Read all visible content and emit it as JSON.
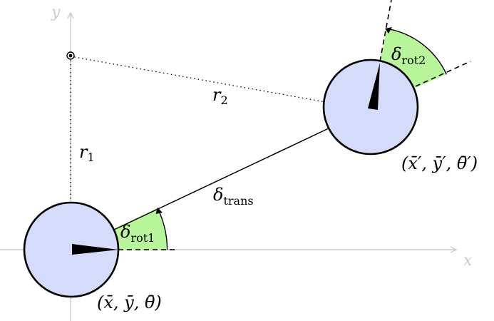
{
  "colors": {
    "axis": "#c3ced6",
    "robot_fill": "#d5dbfa",
    "robot_stroke": "#000000",
    "angle_fill": "#b9f59a",
    "line": "#000000",
    "background": "#ffffff"
  },
  "axes": {
    "x_label": "x",
    "y_label": "y"
  },
  "labels": {
    "r1": {
      "sym": "r",
      "sub": "1"
    },
    "r2": {
      "sym": "r",
      "sub": "2"
    },
    "delta_trans": {
      "sym": "δ",
      "sub": "trans"
    },
    "delta_rot1": {
      "sym": "δ",
      "sub": "rot1"
    },
    "delta_rot2": {
      "sym": "δ",
      "sub": "rot2"
    },
    "pose_start": "(x̄, ȳ, θ̄)",
    "pose_end": "(x̄′, ȳ′, θ̄′)"
  },
  "icons": {
    "origin_marker": "dotted-circle-icon",
    "heading_wedge": "heading-wedge-icon"
  }
}
